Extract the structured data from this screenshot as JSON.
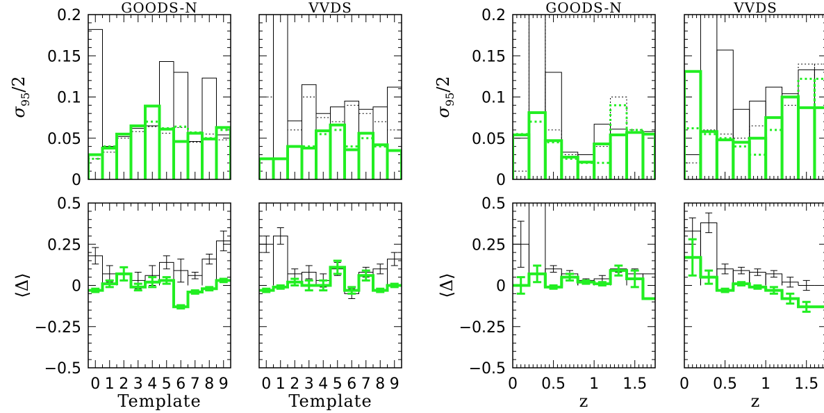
{
  "colors": {
    "black": "#000000",
    "green": "#22ee22"
  },
  "chart_data": [
    {
      "id": "a-top",
      "type": "step-histogram",
      "title": "GOODS-N",
      "ylabel_main": "σ",
      "ylabel_sub": "95",
      "ylabel_tail": "/2",
      "xlim": [
        -0.5,
        9.5
      ],
      "ylim": [
        0,
        0.2
      ],
      "yticks": [
        {
          "v": 0,
          "label": "0"
        },
        {
          "v": 0.05,
          "label": "0.05"
        },
        {
          "v": 0.1,
          "label": "0.1"
        },
        {
          "v": 0.15,
          "label": "0.15"
        },
        {
          "v": 0.2,
          "label": "0.2"
        }
      ],
      "edges": [
        -0.5,
        0.5,
        1.5,
        2.5,
        3.5,
        4.5,
        5.5,
        6.5,
        7.5,
        8.5,
        9.5
      ],
      "black": [
        0.182,
        0.04,
        0.052,
        0.062,
        0.065,
        0.143,
        0.13,
        0.046,
        0.123,
        0.054
      ],
      "black_dotted": [
        0.025,
        0.033,
        0.05,
        0.058,
        0.064,
        0.056,
        0.063,
        0.045,
        0.055,
        0.048
      ],
      "green": [
        0.03,
        0.038,
        0.055,
        0.065,
        0.089,
        0.061,
        0.046,
        0.056,
        0.049,
        0.063
      ],
      "green_dotted": [
        0.025,
        0.04,
        0.055,
        0.065,
        0.07,
        0.062,
        0.064,
        0.057,
        0.05,
        0.06
      ]
    },
    {
      "id": "b-top",
      "type": "step-histogram",
      "title": "VVDS",
      "xlim": [
        -0.5,
        9.5
      ],
      "ylim": [
        0,
        0.2
      ],
      "edges": [
        -0.5,
        0.5,
        1.5,
        2.5,
        3.5,
        4.5,
        5.5,
        6.5,
        7.5,
        8.5,
        9.5
      ],
      "black": [
        0.25,
        0.25,
        0.071,
        0.115,
        0.08,
        0.088,
        0.095,
        0.085,
        0.088,
        0.112
      ],
      "black_dotted": [
        0.1,
        0.25,
        0.06,
        0.1,
        0.075,
        0.07,
        0.09,
        0.08,
        0.07,
        0.06
      ],
      "green": [
        0.025,
        0.025,
        0.04,
        0.038,
        0.059,
        0.066,
        0.036,
        0.056,
        0.042,
        0.035
      ],
      "green_dotted": [
        0.025,
        0.025,
        0.04,
        0.04,
        0.055,
        0.06,
        0.04,
        0.05,
        0.04,
        0.035
      ]
    },
    {
      "id": "c-top",
      "type": "step-histogram",
      "title": "GOODS-N",
      "ylabel_main": "σ",
      "ylabel_sub": "95",
      "ylabel_tail": "/2",
      "xlim": [
        0,
        1.75
      ],
      "ylim": [
        0,
        0.2
      ],
      "yticks": [
        {
          "v": 0,
          "label": "0"
        },
        {
          "v": 0.05,
          "label": "0.05"
        },
        {
          "v": 0.1,
          "label": "0.1"
        },
        {
          "v": 0.15,
          "label": "0.15"
        },
        {
          "v": 0.2,
          "label": "0.2"
        }
      ],
      "edges": [
        0,
        0.2,
        0.4,
        0.6,
        0.8,
        1.0,
        1.2,
        1.4,
        1.6,
        1.75
      ],
      "black": [
        0.05,
        0.25,
        0.13,
        0.033,
        0.03,
        0.067,
        0.061,
        0.058,
        0.058
      ],
      "black_dotted": [
        0.01,
        0.25,
        0.06,
        0.03,
        0.02,
        0.04,
        0.1,
        0.06,
        0.055
      ],
      "green": [
        0.054,
        0.081,
        0.047,
        0.027,
        0.021,
        0.043,
        0.054,
        0.057,
        0.055
      ],
      "green_dotted": [
        0.055,
        0.07,
        0.045,
        0.025,
        0.02,
        0.02,
        0.09,
        0.06,
        0.055
      ]
    },
    {
      "id": "d-top",
      "type": "step-histogram",
      "title": "VVDS",
      "xlim": [
        0,
        1.75
      ],
      "ylim": [
        0,
        0.2
      ],
      "edges": [
        0,
        0.2,
        0.4,
        0.6,
        0.8,
        1.0,
        1.2,
        1.4,
        1.6,
        1.75
      ],
      "black": [
        0.03,
        0.25,
        0.157,
        0.085,
        0.095,
        0.112,
        0.104,
        0.133,
        0.133
      ],
      "black_dotted": [
        0.02,
        0.06,
        0.055,
        0.05,
        0.065,
        0.075,
        0.09,
        0.14,
        0.14
      ],
      "green": [
        0.131,
        0.058,
        0.048,
        0.045,
        0.05,
        0.075,
        0.1,
        0.087,
        0.087
      ],
      "green_dotted": [
        0.062,
        0.055,
        0.05,
        0.04,
        0.03,
        0.06,
        0.1,
        0.122,
        0.122
      ]
    },
    {
      "id": "a-bot",
      "type": "step-histogram-errorbars",
      "ylabel": "⟨Δ⟩",
      "xlabel": "Template",
      "xlim": [
        -0.5,
        9.5
      ],
      "ylim": [
        -0.5,
        0.5
      ],
      "yticks": [
        {
          "v": -0.5,
          "label": "−0.5"
        },
        {
          "v": -0.25,
          "label": "−0.25"
        },
        {
          "v": 0,
          "label": "0"
        },
        {
          "v": 0.25,
          "label": "0.25"
        },
        {
          "v": 0.5,
          "label": "0.5"
        }
      ],
      "xticks": [
        {
          "v": 0,
          "label": "0"
        },
        {
          "v": 1,
          "label": "1"
        },
        {
          "v": 2,
          "label": "2"
        },
        {
          "v": 3,
          "label": "3"
        },
        {
          "v": 4,
          "label": "4"
        },
        {
          "v": 5,
          "label": "5"
        },
        {
          "v": 6,
          "label": "6"
        },
        {
          "v": 7,
          "label": "7"
        },
        {
          "v": 8,
          "label": "8"
        },
        {
          "v": 9,
          "label": "9"
        }
      ],
      "edges": [
        -0.5,
        0.5,
        1.5,
        2.5,
        3.5,
        4.5,
        5.5,
        6.5,
        7.5,
        8.5,
        9.5
      ],
      "black": [
        0.18,
        0.07,
        0.07,
        0.03,
        0.06,
        0.14,
        0.09,
        0.06,
        0.16,
        0.27
      ],
      "black_err": [
        0.05,
        0.05,
        0.04,
        0.05,
        0.06,
        0.04,
        0.07,
        0.02,
        0.03,
        0.06
      ],
      "green": [
        -0.03,
        0.01,
        0.07,
        -0.01,
        0.02,
        0.03,
        -0.13,
        -0.04,
        -0.02,
        0.03
      ],
      "green_err": [
        0.01,
        0.02,
        0.04,
        0.02,
        0.03,
        0.02,
        0.01,
        0.01,
        0.01,
        0.01
      ]
    },
    {
      "id": "b-bot",
      "type": "step-histogram-errorbars",
      "xlabel": "Template",
      "xlim": [
        -0.5,
        9.5
      ],
      "ylim": [
        -0.5,
        0.5
      ],
      "xticks": [
        {
          "v": 0,
          "label": "0"
        },
        {
          "v": 1,
          "label": "1"
        },
        {
          "v": 2,
          "label": "2"
        },
        {
          "v": 3,
          "label": "3"
        },
        {
          "v": 4,
          "label": "4"
        },
        {
          "v": 5,
          "label": "5"
        },
        {
          "v": 6,
          "label": "6"
        },
        {
          "v": 7,
          "label": "7"
        },
        {
          "v": 8,
          "label": "8"
        },
        {
          "v": 9,
          "label": "9"
        }
      ],
      "edges": [
        -0.5,
        0.5,
        1.5,
        2.5,
        3.5,
        4.5,
        5.5,
        6.5,
        7.5,
        8.5,
        9.5
      ],
      "black": [
        0.25,
        0.3,
        0.07,
        0.08,
        0.03,
        0.1,
        -0.05,
        0.08,
        0.1,
        0.16
      ],
      "black_err": [
        0.05,
        0.05,
        0.03,
        0.04,
        0.04,
        0.04,
        0.03,
        0.03,
        0.03,
        0.04
      ],
      "green": [
        -0.03,
        -0.01,
        0.02,
        0.0,
        0.0,
        0.11,
        -0.03,
        0.06,
        -0.03,
        0.0
      ],
      "green_err": [
        0.01,
        0.01,
        0.02,
        0.03,
        0.03,
        0.04,
        0.02,
        0.03,
        0.01,
        0.01
      ]
    },
    {
      "id": "c-bot",
      "type": "step-histogram-errorbars",
      "ylabel": "⟨Δ⟩",
      "xlabel": "z",
      "xlim": [
        0,
        1.75
      ],
      "ylim": [
        -0.5,
        0.5
      ],
      "yticks": [
        {
          "v": -0.5,
          "label": "−0.5"
        },
        {
          "v": -0.25,
          "label": "−0.25"
        },
        {
          "v": 0,
          "label": "0"
        },
        {
          "v": 0.25,
          "label": "0.25"
        },
        {
          "v": 0.5,
          "label": "0.5"
        }
      ],
      "xticks": [
        {
          "v": 0,
          "label": "0"
        },
        {
          "v": 0.5,
          "label": "0.5"
        },
        {
          "v": 1,
          "label": "1"
        },
        {
          "v": 1.5,
          "label": "1.5"
        }
      ],
      "edges": [
        0,
        0.2,
        0.4,
        0.6,
        0.8,
        1.0,
        1.2,
        1.4,
        1.6,
        1.75
      ],
      "black": [
        0.25,
        0.5,
        0.1,
        0.07,
        0.03,
        0.04,
        0.1,
        0.07,
        0.07
      ],
      "black_err": [
        0.14,
        0.0,
        0.02,
        0.02,
        0.01,
        0.02,
        0.02,
        0.03,
        0.0
      ],
      "green": [
        0.0,
        0.07,
        -0.01,
        0.05,
        0.02,
        0.01,
        0.09,
        0.04,
        -0.08
      ],
      "green_err": [
        0.05,
        0.05,
        0.01,
        0.02,
        0.01,
        0.01,
        0.03,
        0.05,
        0.0
      ]
    },
    {
      "id": "d-bot",
      "type": "step-histogram-errorbars",
      "xlabel": "z",
      "xlim": [
        0,
        1.75
      ],
      "ylim": [
        -0.5,
        0.5
      ],
      "xticks": [
        {
          "v": 0,
          "label": "0"
        },
        {
          "v": 0.5,
          "label": "0.5"
        },
        {
          "v": 1,
          "label": "1"
        },
        {
          "v": 1.5,
          "label": "1.5"
        }
      ],
      "edges": [
        0,
        0.2,
        0.4,
        0.6,
        0.8,
        1.0,
        1.2,
        1.4,
        1.6,
        1.75
      ],
      "black": [
        0.33,
        0.38,
        0.1,
        0.09,
        0.08,
        0.07,
        0.02,
        0.0,
        0.0
      ],
      "black_err": [
        0.08,
        0.06,
        0.03,
        0.02,
        0.02,
        0.02,
        0.03,
        0.03,
        0.0
      ],
      "green": [
        0.17,
        0.05,
        -0.03,
        0.01,
        -0.01,
        -0.03,
        -0.08,
        -0.13,
        -0.13
      ],
      "green_err": [
        0.11,
        0.04,
        0.01,
        0.01,
        0.01,
        0.02,
        0.03,
        0.03,
        0.0
      ]
    }
  ]
}
